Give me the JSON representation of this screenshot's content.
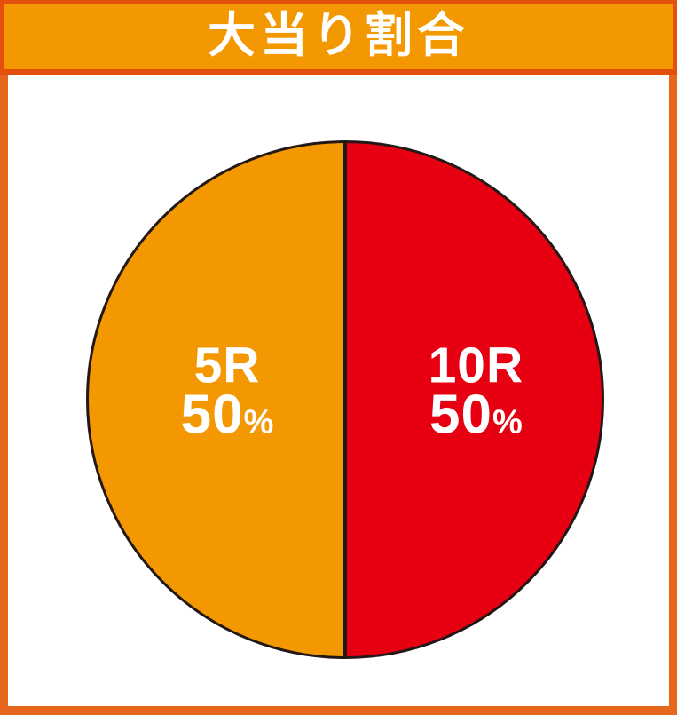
{
  "header": {
    "title": "大当り割合"
  },
  "chart_data": {
    "type": "pie",
    "title": "大当り割合",
    "legend_position": "none",
    "labels_inside": true,
    "slices": [
      {
        "label": "5R",
        "value": 50,
        "unit": "%",
        "color": "#F39800"
      },
      {
        "label": "10R",
        "value": 50,
        "unit": "%",
        "color": "#E60012"
      }
    ]
  },
  "colors": {
    "header_bg": "#F39800",
    "header_border": "#E4500C",
    "content_border": "#E6661C",
    "pie_outline": "#231815",
    "label_text": "#FFFFFF"
  }
}
